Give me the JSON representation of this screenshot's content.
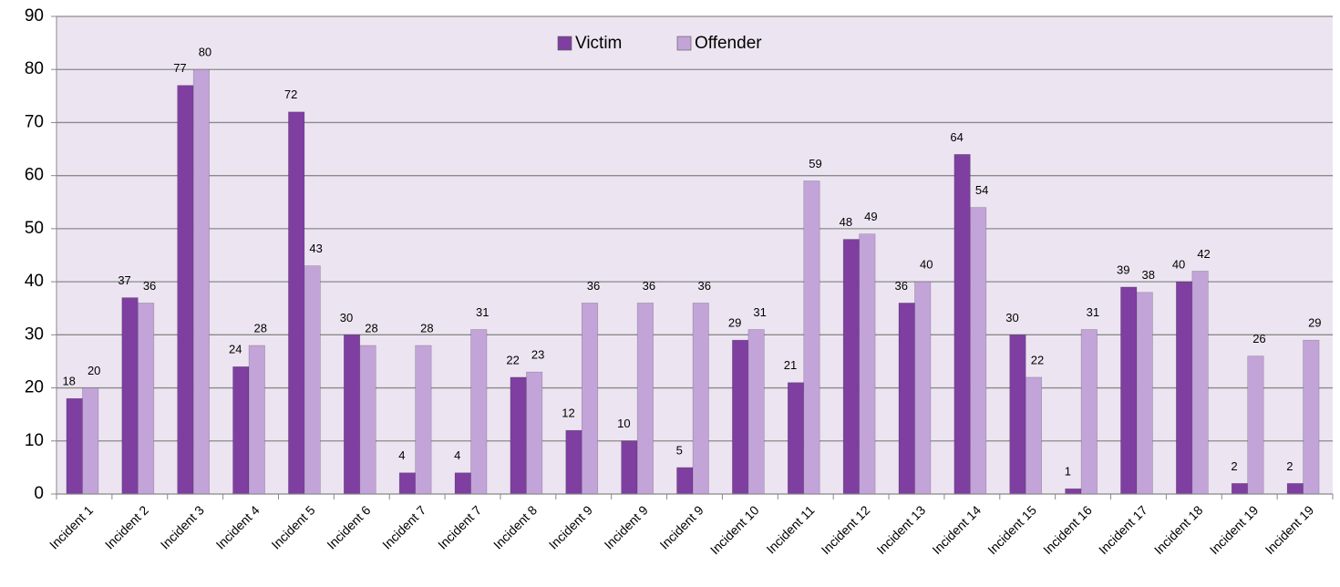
{
  "chart_data": {
    "type": "bar",
    "categories": [
      "Incident 1",
      "Incident 2",
      "Incident 3",
      "Incident 4",
      "Incident 5",
      "Incident 6",
      "Incident 7",
      "Incident 7",
      "Incident 8",
      "Incident 9",
      "Incident 9",
      "Incident 9",
      "Incident 10",
      "Incident 11",
      "Incident 12",
      "Incident 13",
      "Incident 14",
      "Incident 15",
      "Incident 16",
      "Incident 17",
      "Incident 18",
      "Incident 19",
      "Incident 19"
    ],
    "series": [
      {
        "name": "Victim",
        "color": "#7e3fa0",
        "values": [
          18,
          37,
          77,
          24,
          72,
          30,
          4,
          4,
          22,
          12,
          10,
          5,
          29,
          21,
          48,
          36,
          64,
          30,
          1,
          39,
          40,
          2,
          2
        ]
      },
      {
        "name": "Offender",
        "color": "#c2a4d8",
        "values": [
          20,
          36,
          80,
          28,
          43,
          28,
          28,
          31,
          23,
          36,
          36,
          36,
          31,
          59,
          49,
          40,
          54,
          22,
          31,
          38,
          42,
          26,
          29
        ]
      }
    ],
    "ylim": [
      0,
      90
    ],
    "yticks": [
      0,
      10,
      20,
      30,
      40,
      50,
      60,
      70,
      80,
      90
    ],
    "grid": true,
    "legend": "top"
  }
}
